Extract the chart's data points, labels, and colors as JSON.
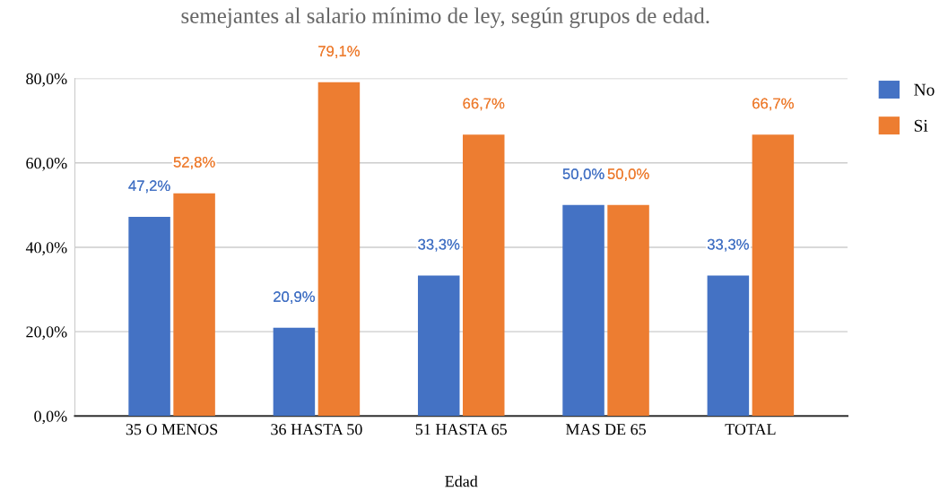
{
  "chart_data": {
    "type": "bar",
    "title": "semejantes al salario mínimo de ley, según grupos de edad.",
    "xlabel": "Edad",
    "categories": [
      "35 O MENOS",
      "36 HASTA 50",
      "51 HASTA 65",
      "MAS DE 65",
      "TOTAL"
    ],
    "series": [
      {
        "name": "No",
        "color": "#4472c4",
        "values": [
          47.2,
          20.9,
          33.3,
          50.0,
          33.3
        ],
        "value_labels": [
          "47,2%",
          "20,9%",
          "33,3%",
          "50,0%",
          "33,3%"
        ]
      },
      {
        "name": "Si",
        "color": "#ed7d31",
        "values": [
          52.8,
          79.1,
          66.7,
          50.0,
          66.7
        ],
        "value_labels": [
          "52,8%",
          "79,1%",
          "66,7%",
          "50,0%",
          "66,7%"
        ]
      }
    ],
    "ylim": [
      0,
      80
    ],
    "yticks": [
      {
        "value": 0,
        "label": "0,0%"
      },
      {
        "value": 20,
        "label": "20,0%"
      },
      {
        "value": 40,
        "label": "40,0%"
      },
      {
        "value": 60,
        "label": "60,0%"
      },
      {
        "value": 80,
        "label": "80,0%"
      }
    ],
    "grid": "y",
    "legend": "right"
  }
}
